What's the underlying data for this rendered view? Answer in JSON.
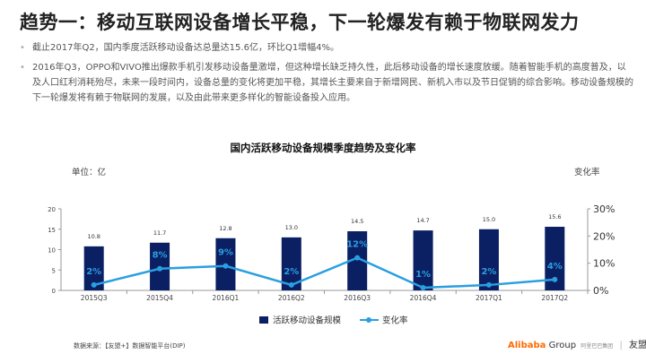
{
  "page": {
    "title": "趋势一：移动互联网设备增长平稳，下一轮爆发有赖于物联网发力",
    "bullets": [
      "截止2017年Q2，国内季度活跃移动设备达总量达15.6亿，环比Q1增幅4%。",
      "2016年Q3，OPPO和VIVO推出爆款手机引发移动设备量激增，但这种增长缺乏持久性，此后移动设备的增长速度放缓。随着智能手机的高度普及，以及人口红利消耗殆尽，未来一段时间内，设备总量的变化将更加平稳，其增长主要来自于新增网民、新机入市以及节日促销的综合影响。移动设备规模的下一轮爆发将有赖于物联网的发展，以及由此带来更多样化的智能设备投入应用。"
    ],
    "source": "数据来源：【友盟+】数据智能平台(DIP)",
    "brand": {
      "alibaba": "Alibaba",
      "group": "Group",
      "sub": "阿里巴巴集团",
      "umeng": "友盟+"
    }
  },
  "chart_data": {
    "type": "bar",
    "title": "国内活跃移动设备规模季度趋势及变化率",
    "ylabel": "单位：亿",
    "y2label": "变化率",
    "categories": [
      "2015Q3",
      "2015Q4",
      "2016Q1",
      "2016Q2",
      "2016Q3",
      "2016Q4",
      "2017Q1",
      "2017Q2"
    ],
    "series": [
      {
        "name": "活跃移动设备规模",
        "kind": "bar",
        "axis": "left",
        "color": "#0b1f63",
        "values": [
          10.8,
          11.7,
          12.8,
          13.0,
          14.5,
          14.7,
          15.0,
          15.6
        ],
        "labels": [
          "10.8",
          "11.7",
          "12.8",
          "13.0",
          "14.5",
          "14.7",
          "15.0",
          "15.6"
        ]
      },
      {
        "name": "变化率",
        "kind": "line",
        "axis": "right",
        "color": "#2a9fe0",
        "values": [
          2,
          8,
          9,
          2,
          12,
          1,
          2,
          4
        ],
        "labels": [
          "2%",
          "8%",
          "9%",
          "2%",
          "12%",
          "1%",
          "2%",
          "4%"
        ]
      }
    ],
    "ylim": [
      0,
      20
    ],
    "yticks": [
      0,
      5,
      10,
      15,
      20
    ],
    "y2lim": [
      0,
      30
    ],
    "y2ticks": [
      "0%",
      "10%",
      "20%",
      "30%"
    ],
    "legend_position": "bottom-center"
  }
}
